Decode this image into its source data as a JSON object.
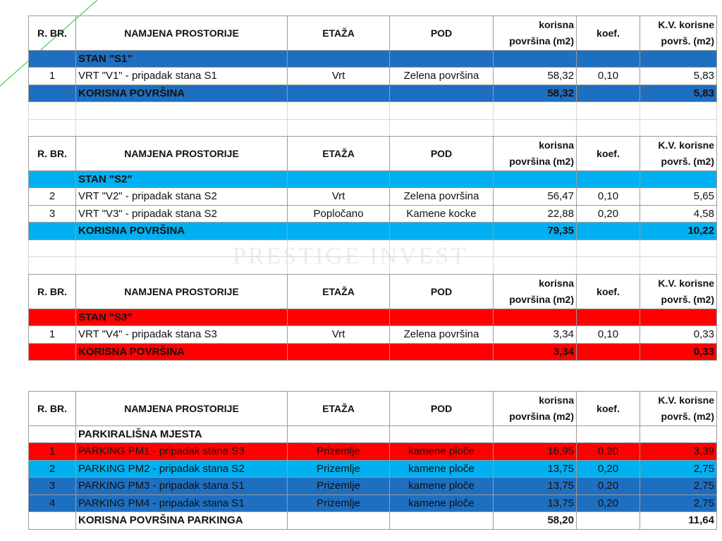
{
  "watermark": "PRESTIGE INVEST",
  "tables": [
    {
      "header": [
        "R. BR.",
        "NAMJENA PROSTORIJE",
        "ETAŽA",
        "POD",
        "korisna površina (m2)",
        "koef.",
        "K.V. korisne površ. (m2)"
      ],
      "section": "STAN \"S1\"",
      "rows": [
        [
          "1",
          "VRT \"V1\" - pripadak stana S1",
          "Vrt",
          "Zelena površina",
          "58,32",
          "0,10",
          "5,83"
        ]
      ],
      "total": {
        "label": "KORISNA POVRŠINA",
        "area": "58,32",
        "kv": "5,83"
      }
    },
    {
      "header": [
        "R. BR.",
        "NAMJENA PROSTORIJE",
        "ETAŽA",
        "POD",
        "korisna površina (m2)",
        "koef.",
        "K.V. korisne površ. (m2)"
      ],
      "section": "STAN \"S2\"",
      "rows": [
        [
          "2",
          "VRT \"V2\" - pripadak stana S2",
          "Vrt",
          "Zelena površina",
          "56,47",
          "0,10",
          "5,65"
        ],
        [
          "3",
          "VRT \"V3\" - pripadak stana S2",
          "Popločano",
          "Kamene kocke",
          "22,88",
          "0,20",
          "4,58"
        ]
      ],
      "total": {
        "label": "KORISNA POVRŠINA",
        "area": "79,35",
        "kv": "10,22"
      }
    },
    {
      "header": [
        "R. BR.",
        "NAMJENA PROSTORIJE",
        "ETAŽA",
        "POD",
        "korisna površina (m2)",
        "koef.",
        "K.V. korisne površ. (m2)"
      ],
      "section": "STAN \"S3\"",
      "rows": [
        [
          "1",
          "VRT \"V4\" - pripadak stana S3",
          "Vrt",
          "Zelena površina",
          "3,34",
          "0,10",
          "0,33"
        ]
      ],
      "total": {
        "label": "KORISNA POVRŠINA",
        "area": "3,34",
        "kv": "0,33"
      }
    },
    {
      "header": [
        "R. BR.",
        "NAMJENA PROSTORIJE",
        "ETAŽA",
        "POD",
        "korisna površina (m2)",
        "koef.",
        "K.V. korisne površ. (m2)"
      ],
      "section": "PARKIRALIŠNA MJESTA",
      "rows": [
        [
          "1",
          "PARKING PM1 - pripadak stana S3",
          "Prizemlje",
          "kamene ploče",
          "16,95",
          "0,20",
          "3,39"
        ],
        [
          "2",
          "PARKING PM2 - pripadak stana S2",
          "Prizemlje",
          "kamene ploče",
          "13,75",
          "0,20",
          "2,75"
        ],
        [
          "3",
          "PARKING PM3 - pripadak stana S1",
          "Prizemlje",
          "kamene ploče",
          "13,75",
          "0,20",
          "2,75"
        ],
        [
          "4",
          "PARKING PM4 - pripadak stana S1",
          "Prizemlje",
          "kamene ploče",
          "13,75",
          "0,20",
          "2,75"
        ]
      ],
      "total": {
        "label": "KORISNA POVRŠINA PARKINGA",
        "area": "58,20",
        "kv": "11,64"
      }
    }
  ]
}
